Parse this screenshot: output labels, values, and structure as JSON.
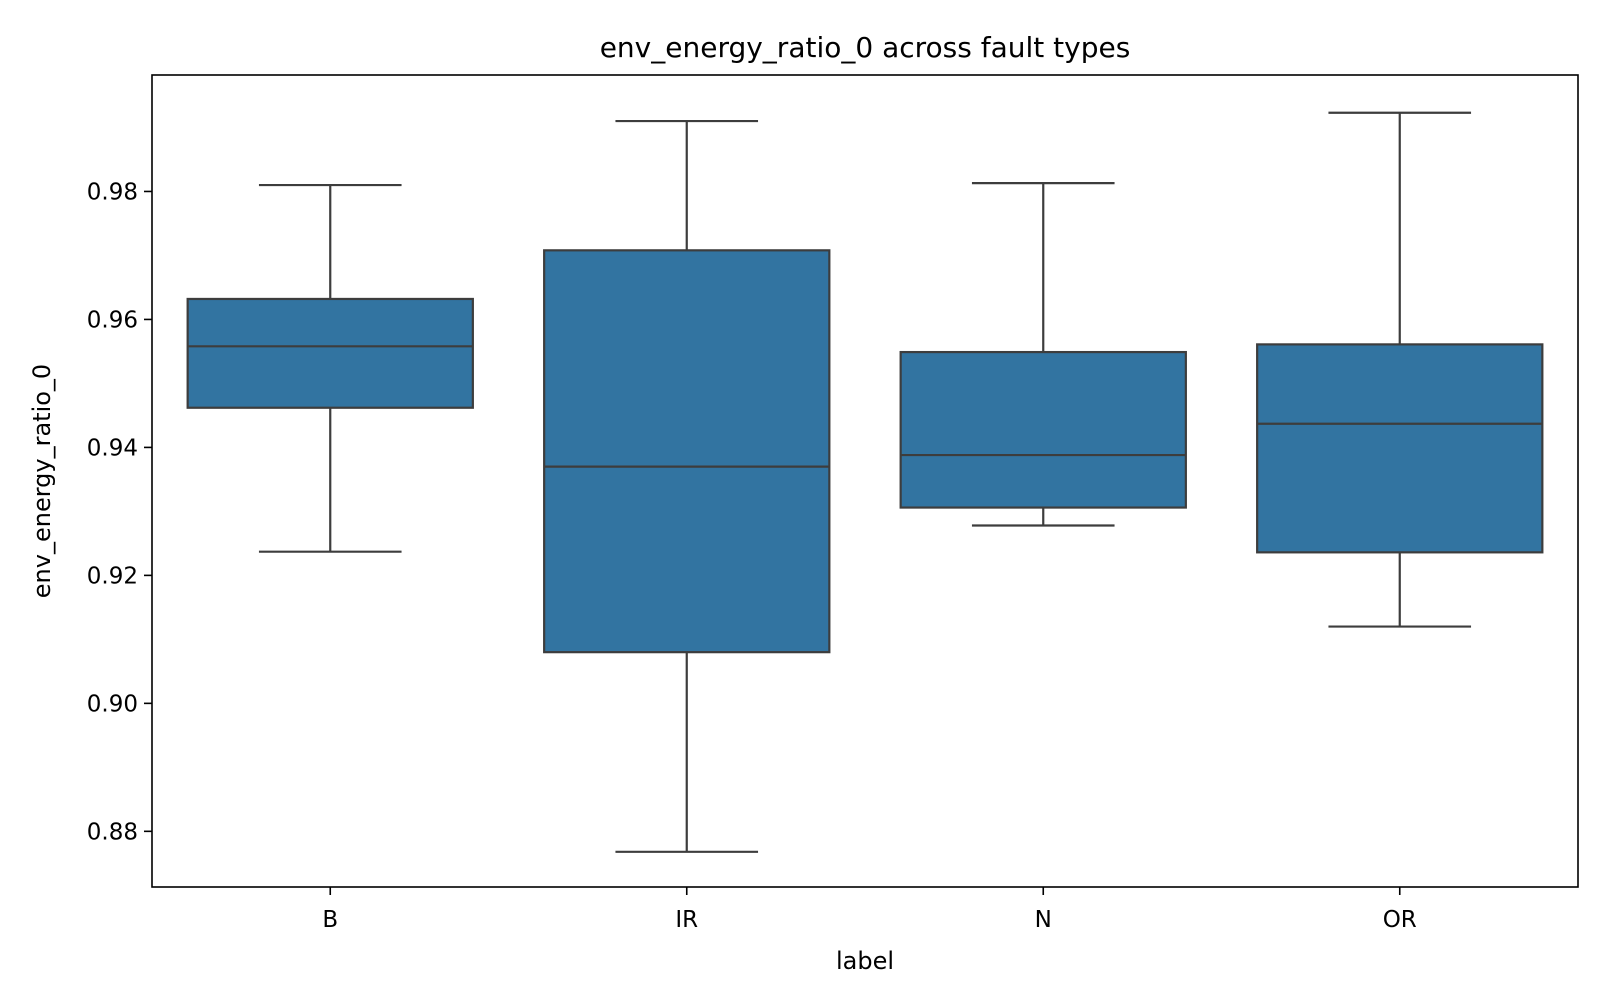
{
  "chart_data": {
    "type": "box",
    "title": "env_energy_ratio_0 across fault types",
    "xlabel": "label",
    "ylabel": "env_energy_ratio_0",
    "ylim": [
      0.8713,
      0.9982
    ],
    "yticks": [
      "0.88",
      "0.90",
      "0.92",
      "0.94",
      "0.96",
      "0.98"
    ],
    "grid": false,
    "legend": "none",
    "box_color": "#3274a1",
    "line_color": "#3d3d3d",
    "categories": [
      "B",
      "IR",
      "N",
      "OR"
    ],
    "boxes": [
      {
        "category": "B",
        "whisker_low": 0.9237,
        "q1": 0.9462,
        "median": 0.9558,
        "q3": 0.9632,
        "whisker_high": 0.981
      },
      {
        "category": "IR",
        "whisker_low": 0.8768,
        "q1": 0.908,
        "median": 0.937,
        "q3": 0.9708,
        "whisker_high": 0.991
      },
      {
        "category": "N",
        "whisker_low": 0.9278,
        "q1": 0.9306,
        "median": 0.9388,
        "q3": 0.9549,
        "whisker_high": 0.9813
      },
      {
        "category": "OR",
        "whisker_low": 0.912,
        "q1": 0.9236,
        "median": 0.9437,
        "q3": 0.9561,
        "whisker_high": 0.9923
      }
    ]
  }
}
